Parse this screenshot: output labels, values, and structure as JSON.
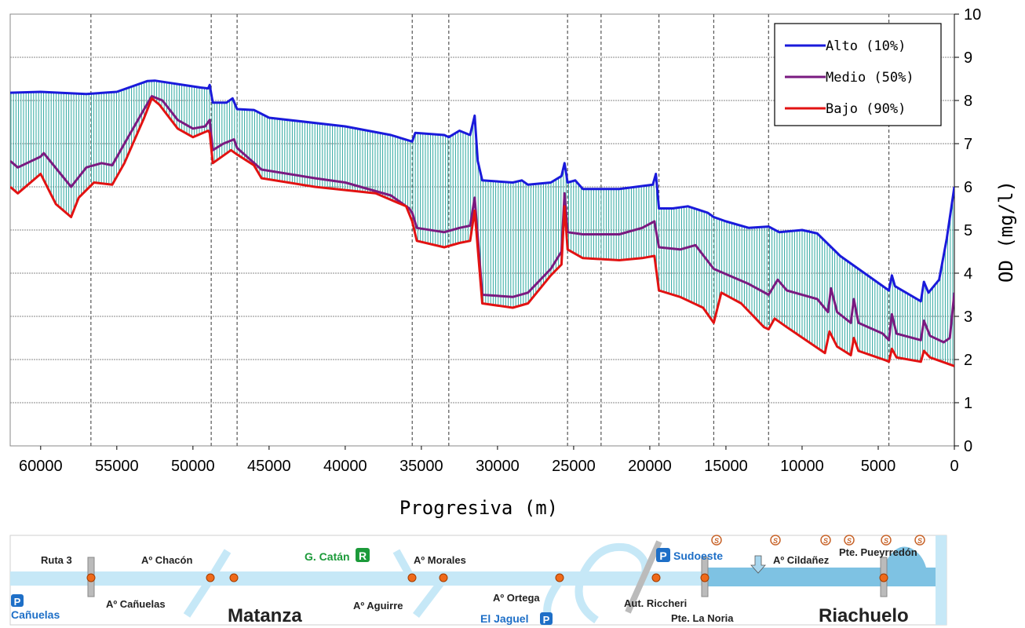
{
  "chart_data": {
    "type": "line",
    "xlabel": "Progresiva (m)",
    "ylabel": "OD (mg/l)",
    "xlim": [
      62000,
      0
    ],
    "ylim": [
      0,
      10
    ],
    "x_ticks": [
      "60000",
      "55000",
      "50000",
      "45000",
      "40000",
      "35000",
      "30000",
      "25000",
      "20000",
      "15000",
      "10000",
      "5000",
      "0"
    ],
    "y_ticks": [
      "0",
      "1",
      "2",
      "3",
      "4",
      "5",
      "6",
      "7",
      "8",
      "9",
      "10"
    ],
    "grid": "horizontal",
    "legend_position": "top-right",
    "vertical_markers": [
      56700,
      48800,
      47100,
      35600,
      33200,
      25400,
      23200,
      19400,
      15800,
      12200,
      4300
    ],
    "series": [
      {
        "name": "Alto (10%)",
        "color": "#1a1adb",
        "points": [
          [
            62000,
            8.18
          ],
          [
            60000,
            8.2
          ],
          [
            57000,
            8.15
          ],
          [
            55000,
            8.2
          ],
          [
            53000,
            8.45
          ],
          [
            52500,
            8.46
          ],
          [
            49500,
            8.3
          ],
          [
            49000,
            8.28
          ],
          [
            48900,
            8.36
          ],
          [
            48700,
            7.95
          ],
          [
            47800,
            7.95
          ],
          [
            47400,
            8.05
          ],
          [
            47100,
            7.8
          ],
          [
            46000,
            7.78
          ],
          [
            45000,
            7.6
          ],
          [
            40000,
            7.4
          ],
          [
            37000,
            7.2
          ],
          [
            35600,
            7.05
          ],
          [
            35400,
            7.25
          ],
          [
            33500,
            7.2
          ],
          [
            33200,
            7.15
          ],
          [
            32500,
            7.3
          ],
          [
            31800,
            7.2
          ],
          [
            31500,
            7.65
          ],
          [
            31300,
            6.6
          ],
          [
            31000,
            6.15
          ],
          [
            29000,
            6.1
          ],
          [
            28400,
            6.15
          ],
          [
            28000,
            6.05
          ],
          [
            26500,
            6.1
          ],
          [
            25800,
            6.25
          ],
          [
            25600,
            6.55
          ],
          [
            25400,
            6.1
          ],
          [
            24900,
            6.15
          ],
          [
            24400,
            5.95
          ],
          [
            22000,
            5.95
          ],
          [
            19800,
            6.05
          ],
          [
            19600,
            6.3
          ],
          [
            19400,
            5.5
          ],
          [
            18500,
            5.5
          ],
          [
            17500,
            5.55
          ],
          [
            16200,
            5.4
          ],
          [
            15800,
            5.3
          ],
          [
            15000,
            5.2
          ],
          [
            13500,
            5.05
          ],
          [
            12200,
            5.08
          ],
          [
            11500,
            4.95
          ],
          [
            10000,
            5.0
          ],
          [
            9000,
            4.92
          ],
          [
            7500,
            4.4
          ],
          [
            4300,
            3.6
          ],
          [
            4100,
            3.95
          ],
          [
            3900,
            3.7
          ],
          [
            2200,
            3.35
          ],
          [
            2000,
            3.8
          ],
          [
            1700,
            3.55
          ],
          [
            1000,
            3.85
          ],
          [
            500,
            4.8
          ],
          [
            0,
            6.0
          ]
        ]
      },
      {
        "name": "Medio (50%)",
        "color": "#7a1a80",
        "points": [
          [
            62000,
            6.6
          ],
          [
            61500,
            6.45
          ],
          [
            60000,
            6.7
          ],
          [
            59800,
            6.78
          ],
          [
            58000,
            6.0
          ],
          [
            57000,
            6.45
          ],
          [
            56000,
            6.55
          ],
          [
            55300,
            6.5
          ],
          [
            54500,
            7.0
          ],
          [
            53200,
            7.8
          ],
          [
            52700,
            8.1
          ],
          [
            52000,
            8.0
          ],
          [
            51000,
            7.55
          ],
          [
            50000,
            7.35
          ],
          [
            49200,
            7.4
          ],
          [
            48900,
            7.55
          ],
          [
            48700,
            6.85
          ],
          [
            48000,
            7.0
          ],
          [
            47300,
            7.1
          ],
          [
            47100,
            6.9
          ],
          [
            45500,
            6.4
          ],
          [
            42000,
            6.2
          ],
          [
            40000,
            6.1
          ],
          [
            37000,
            5.8
          ],
          [
            35800,
            5.5
          ],
          [
            35600,
            5.4
          ],
          [
            35300,
            5.05
          ],
          [
            33500,
            4.95
          ],
          [
            32500,
            5.05
          ],
          [
            31800,
            5.1
          ],
          [
            31500,
            5.75
          ],
          [
            31000,
            3.5
          ],
          [
            29000,
            3.45
          ],
          [
            28000,
            3.55
          ],
          [
            26500,
            4.1
          ],
          [
            25800,
            4.5
          ],
          [
            25600,
            5.85
          ],
          [
            25400,
            4.95
          ],
          [
            24400,
            4.9
          ],
          [
            22000,
            4.9
          ],
          [
            20500,
            5.05
          ],
          [
            19700,
            5.2
          ],
          [
            19400,
            4.6
          ],
          [
            18000,
            4.55
          ],
          [
            17000,
            4.65
          ],
          [
            15800,
            4.1
          ],
          [
            13500,
            3.75
          ],
          [
            12200,
            3.5
          ],
          [
            11600,
            3.85
          ],
          [
            11000,
            3.6
          ],
          [
            9000,
            3.4
          ],
          [
            8300,
            3.1
          ],
          [
            8100,
            3.65
          ],
          [
            7700,
            3.1
          ],
          [
            6800,
            2.85
          ],
          [
            6600,
            3.4
          ],
          [
            6300,
            2.85
          ],
          [
            4700,
            2.6
          ],
          [
            4300,
            2.45
          ],
          [
            4100,
            3.05
          ],
          [
            3800,
            2.6
          ],
          [
            2200,
            2.45
          ],
          [
            2000,
            2.9
          ],
          [
            1600,
            2.55
          ],
          [
            700,
            2.4
          ],
          [
            300,
            2.5
          ],
          [
            0,
            3.55
          ]
        ]
      },
      {
        "name": "Bajo (90%)",
        "color": "#e21212",
        "points": [
          [
            62000,
            6.0
          ],
          [
            61500,
            5.85
          ],
          [
            60000,
            6.3
          ],
          [
            59000,
            5.6
          ],
          [
            58000,
            5.3
          ],
          [
            57500,
            5.75
          ],
          [
            56500,
            6.1
          ],
          [
            55300,
            6.05
          ],
          [
            54500,
            6.55
          ],
          [
            53200,
            7.6
          ],
          [
            52700,
            8.05
          ],
          [
            52200,
            7.9
          ],
          [
            51000,
            7.35
          ],
          [
            50000,
            7.15
          ],
          [
            49000,
            7.3
          ],
          [
            48900,
            7.25
          ],
          [
            48700,
            6.55
          ],
          [
            47500,
            6.85
          ],
          [
            47100,
            6.75
          ],
          [
            46000,
            6.5
          ],
          [
            45500,
            6.2
          ],
          [
            42000,
            6.0
          ],
          [
            38000,
            5.85
          ],
          [
            36000,
            5.55
          ],
          [
            35600,
            5.2
          ],
          [
            35300,
            4.75
          ],
          [
            33500,
            4.6
          ],
          [
            32500,
            4.7
          ],
          [
            31800,
            4.75
          ],
          [
            31500,
            5.45
          ],
          [
            31000,
            3.3
          ],
          [
            29000,
            3.2
          ],
          [
            28000,
            3.3
          ],
          [
            26500,
            3.95
          ],
          [
            25800,
            4.2
          ],
          [
            25600,
            5.55
          ],
          [
            25400,
            4.55
          ],
          [
            24400,
            4.35
          ],
          [
            22000,
            4.3
          ],
          [
            20500,
            4.35
          ],
          [
            19700,
            4.4
          ],
          [
            19400,
            3.6
          ],
          [
            18000,
            3.45
          ],
          [
            16500,
            3.2
          ],
          [
            15800,
            2.85
          ],
          [
            15300,
            3.55
          ],
          [
            14000,
            3.3
          ],
          [
            12500,
            2.75
          ],
          [
            12200,
            2.7
          ],
          [
            11800,
            2.95
          ],
          [
            11000,
            2.75
          ],
          [
            8500,
            2.15
          ],
          [
            8200,
            2.65
          ],
          [
            7700,
            2.3
          ],
          [
            6800,
            2.1
          ],
          [
            6600,
            2.5
          ],
          [
            6300,
            2.2
          ],
          [
            4500,
            1.98
          ],
          [
            4300,
            1.95
          ],
          [
            4100,
            2.25
          ],
          [
            3800,
            2.05
          ],
          [
            2200,
            1.95
          ],
          [
            2000,
            2.2
          ],
          [
            1600,
            2.05
          ],
          [
            0,
            1.85
          ]
        ]
      }
    ]
  },
  "map": {
    "labels": {
      "ruta3": "Ruta 3",
      "chacon": "Aº Chacón",
      "gcatan": "G. Catán",
      "gcatan_badge": "R",
      "morales": "Aº Morales",
      "sudoeste": "Sudoeste",
      "cildanez": "Aº Cildañez",
      "pueyrredon": "Pte. Pueyrredón",
      "canuelas_p": "P",
      "canuelas": "Cañuelas",
      "ac_canuelas": "Aº Cañuelas",
      "matanza": "Matanza",
      "aguirre": "Aº Aguirre",
      "ortega": "Aº Ortega",
      "jaguel": "El Jaguel",
      "riccheri": "Aut. Riccheri",
      "noria": "Pte. La Noria",
      "riachuelo": "Riachuelo",
      "p_badge": "P",
      "s_badge": "S"
    }
  }
}
